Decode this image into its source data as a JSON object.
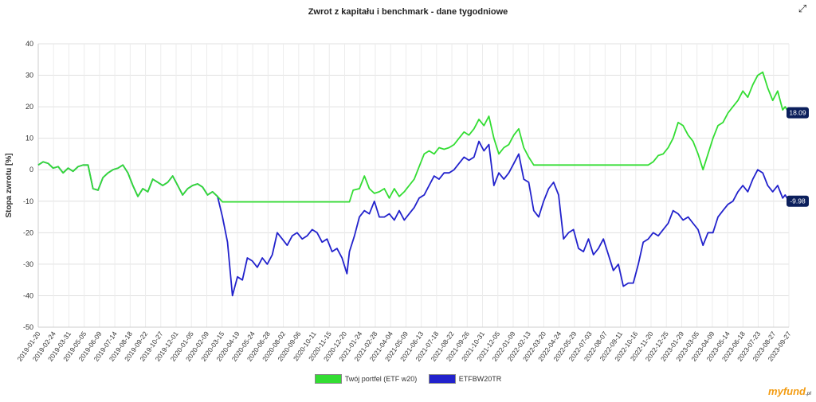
{
  "chart_data": {
    "type": "line",
    "title": "Zwrot z kapitału i benchmark - dane tygodniowe",
    "ylabel": "Stopa zwrotu [%]",
    "xlabel": "",
    "ylim": [
      -50,
      40
    ],
    "yticks": [
      40,
      30,
      20,
      10,
      0,
      -10,
      -20,
      -30,
      -40,
      -50
    ],
    "grid": true,
    "legend_position": "bottom",
    "x_ticks": [
      "2019-01-20",
      "2019-02-24",
      "2019-03-31",
      "2019-05-05",
      "2019-06-09",
      "2019-07-14",
      "2019-08-18",
      "2019-09-22",
      "2019-10-27",
      "2019-12-01",
      "2020-01-05",
      "2020-02-09",
      "2020-03-15",
      "2020-04-19",
      "2020-05-24",
      "2020-06-28",
      "2020-08-02",
      "2020-09-06",
      "2020-10-11",
      "2020-11-15",
      "2020-12-20",
      "2021-01-24",
      "2021-02-28",
      "2021-04-04",
      "2021-05-09",
      "2021-06-13",
      "2021-07-18",
      "2021-08-22",
      "2021-09-26",
      "2021-10-31",
      "2021-12-05",
      "2022-01-09",
      "2022-02-13",
      "2022-03-20",
      "2022-04-24",
      "2022-05-29",
      "2022-07-03",
      "2022-08-07",
      "2022-09-11",
      "2022-10-16",
      "2022-11-20",
      "2022-12-25",
      "2023-01-29",
      "2023-03-05",
      "2023-04-09",
      "2023-05-14",
      "2023-06-18",
      "2023-07-23",
      "2023-08-27",
      "2023-09-27"
    ],
    "series": [
      {
        "name": "Twój portfel (ETF w20)",
        "color": "#33dd33",
        "end_label": "18.09",
        "points": [
          [
            0,
            1.5
          ],
          [
            0.4,
            2.5
          ],
          [
            0.8,
            2
          ],
          [
            1.2,
            0.5
          ],
          [
            1.6,
            1
          ],
          [
            2,
            -1
          ],
          [
            2.4,
            0.5
          ],
          [
            2.8,
            -0.5
          ],
          [
            3.2,
            1
          ],
          [
            3.6,
            1.5
          ],
          [
            4,
            1.5
          ],
          [
            4.4,
            -6
          ],
          [
            4.8,
            -6.5
          ],
          [
            5.2,
            -2.5
          ],
          [
            5.6,
            -1
          ],
          [
            6,
            0
          ],
          [
            6.4,
            0.5
          ],
          [
            6.8,
            1.5
          ],
          [
            7.2,
            -1
          ],
          [
            7.6,
            -5
          ],
          [
            8,
            -8.5
          ],
          [
            8.4,
            -6
          ],
          [
            8.8,
            -7
          ],
          [
            9.2,
            -3
          ],
          [
            9.6,
            -4
          ],
          [
            10,
            -5
          ],
          [
            10.4,
            -4
          ],
          [
            10.8,
            -2
          ],
          [
            11.2,
            -5
          ],
          [
            11.6,
            -8
          ],
          [
            12,
            -6
          ],
          [
            12.4,
            -5
          ],
          [
            12.8,
            -4.5
          ],
          [
            13.2,
            -5.5
          ],
          [
            13.6,
            -8
          ],
          [
            14,
            -7
          ],
          [
            14.4,
            -8.5
          ],
          [
            14.8,
            -10.2
          ],
          [
            15.2,
            -10.2
          ],
          [
            20,
            -10.2
          ],
          [
            25,
            -10.2
          ],
          [
            25.3,
            -6.5
          ],
          [
            25.8,
            -6
          ],
          [
            26.2,
            -2
          ],
          [
            26.6,
            -6
          ],
          [
            27,
            -7.5
          ],
          [
            27.4,
            -7
          ],
          [
            27.8,
            -6
          ],
          [
            28.2,
            -9
          ],
          [
            28.6,
            -6
          ],
          [
            29,
            -8.5
          ],
          [
            29.4,
            -7
          ],
          [
            29.8,
            -5
          ],
          [
            30.2,
            -3
          ],
          [
            30.6,
            1
          ],
          [
            31,
            5
          ],
          [
            31.4,
            6
          ],
          [
            31.8,
            5
          ],
          [
            32.2,
            7
          ],
          [
            32.6,
            6.5
          ],
          [
            33,
            7
          ],
          [
            33.4,
            8
          ],
          [
            33.8,
            10
          ],
          [
            34.2,
            12
          ],
          [
            34.6,
            11
          ],
          [
            35,
            13
          ],
          [
            35.4,
            16
          ],
          [
            35.8,
            14
          ],
          [
            36.2,
            17
          ],
          [
            36.6,
            10
          ],
          [
            37,
            5
          ],
          [
            37.4,
            7
          ],
          [
            37.8,
            8
          ],
          [
            38.2,
            11
          ],
          [
            38.6,
            13
          ],
          [
            39,
            7
          ],
          [
            39.4,
            4
          ],
          [
            39.8,
            1.5
          ],
          [
            42,
            1.5
          ],
          [
            45,
            1.5
          ],
          [
            48,
            1.5
          ],
          [
            49,
            1.5
          ],
          [
            49.4,
            2.5
          ],
          [
            49.8,
            4.5
          ],
          [
            50.2,
            5
          ],
          [
            50.6,
            7
          ],
          [
            51,
            10
          ],
          [
            51.4,
            15
          ],
          [
            51.8,
            14
          ],
          [
            52.2,
            11
          ],
          [
            52.6,
            9
          ],
          [
            53,
            5
          ],
          [
            53.4,
            0
          ],
          [
            53.8,
            5
          ],
          [
            54.2,
            10
          ],
          [
            54.6,
            14
          ],
          [
            55,
            15
          ],
          [
            55.4,
            18
          ],
          [
            55.8,
            20
          ],
          [
            56.2,
            22
          ],
          [
            56.6,
            25
          ],
          [
            57,
            23
          ],
          [
            57.4,
            27
          ],
          [
            57.8,
            30
          ],
          [
            58.2,
            31
          ],
          [
            58.6,
            26
          ],
          [
            59,
            22
          ],
          [
            59.4,
            25
          ],
          [
            59.8,
            19
          ],
          [
            60,
            20
          ],
          [
            60.3,
            18.09
          ]
        ]
      },
      {
        "name": "ETFBW20TR",
        "color": "#2222cc",
        "end_label": "-9.98",
        "points": [
          [
            0,
            1.5
          ],
          [
            0.4,
            2.5
          ],
          [
            0.8,
            2
          ],
          [
            1.2,
            0.5
          ],
          [
            1.6,
            1
          ],
          [
            2,
            -1
          ],
          [
            2.4,
            0.5
          ],
          [
            2.8,
            -0.5
          ],
          [
            3.2,
            1
          ],
          [
            3.6,
            1.5
          ],
          [
            4,
            1.5
          ],
          [
            4.4,
            -6
          ],
          [
            4.8,
            -6.5
          ],
          [
            5.2,
            -2.5
          ],
          [
            5.6,
            -1
          ],
          [
            6,
            0
          ],
          [
            6.4,
            0.5
          ],
          [
            6.8,
            1.5
          ],
          [
            7.2,
            -1
          ],
          [
            7.6,
            -5
          ],
          [
            8,
            -8.5
          ],
          [
            8.4,
            -6
          ],
          [
            8.8,
            -7
          ],
          [
            9.2,
            -3
          ],
          [
            9.6,
            -4
          ],
          [
            10,
            -5
          ],
          [
            10.4,
            -4
          ],
          [
            10.8,
            -2
          ],
          [
            11.2,
            -5
          ],
          [
            11.6,
            -8
          ],
          [
            12,
            -6
          ],
          [
            12.4,
            -5
          ],
          [
            12.8,
            -4.5
          ],
          [
            13.2,
            -5.5
          ],
          [
            13.6,
            -8
          ],
          [
            14,
            -7
          ],
          [
            14.4,
            -8.5
          ],
          [
            14.8,
            -15
          ],
          [
            15.2,
            -23
          ],
          [
            15.6,
            -40
          ],
          [
            16,
            -34
          ],
          [
            16.4,
            -35
          ],
          [
            16.8,
            -28
          ],
          [
            17.2,
            -29
          ],
          [
            17.6,
            -31
          ],
          [
            18,
            -28
          ],
          [
            18.4,
            -30
          ],
          [
            18.8,
            -27
          ],
          [
            19.2,
            -20
          ],
          [
            19.6,
            -22
          ],
          [
            20,
            -24
          ],
          [
            20.4,
            -21
          ],
          [
            20.8,
            -20
          ],
          [
            21.2,
            -22
          ],
          [
            21.6,
            -21
          ],
          [
            22,
            -19
          ],
          [
            22.4,
            -20
          ],
          [
            22.8,
            -23
          ],
          [
            23.2,
            -22
          ],
          [
            23.6,
            -26
          ],
          [
            24,
            -25
          ],
          [
            24.4,
            -28
          ],
          [
            24.8,
            -33
          ],
          [
            25,
            -26
          ],
          [
            25.4,
            -21
          ],
          [
            25.8,
            -15
          ],
          [
            26.2,
            -13
          ],
          [
            26.6,
            -14
          ],
          [
            27,
            -10
          ],
          [
            27.4,
            -15
          ],
          [
            27.8,
            -15
          ],
          [
            28.2,
            -14
          ],
          [
            28.6,
            -16
          ],
          [
            29,
            -13
          ],
          [
            29.4,
            -16
          ],
          [
            29.8,
            -14
          ],
          [
            30.2,
            -12
          ],
          [
            30.6,
            -9
          ],
          [
            31,
            -8
          ],
          [
            31.4,
            -5
          ],
          [
            31.8,
            -2
          ],
          [
            32.2,
            -3
          ],
          [
            32.6,
            -1
          ],
          [
            33,
            -1
          ],
          [
            33.4,
            0
          ],
          [
            33.8,
            2
          ],
          [
            34.2,
            4
          ],
          [
            34.6,
            3
          ],
          [
            35,
            4
          ],
          [
            35.4,
            9
          ],
          [
            35.8,
            6
          ],
          [
            36.2,
            8
          ],
          [
            36.6,
            -5
          ],
          [
            37,
            -1
          ],
          [
            37.4,
            -3
          ],
          [
            37.8,
            -1
          ],
          [
            38.2,
            2
          ],
          [
            38.6,
            5
          ],
          [
            39,
            -3
          ],
          [
            39.4,
            -4
          ],
          [
            39.8,
            -13
          ],
          [
            40.2,
            -15
          ],
          [
            40.6,
            -10
          ],
          [
            41,
            -6
          ],
          [
            41.4,
            -4
          ],
          [
            41.8,
            -8
          ],
          [
            42.2,
            -22
          ],
          [
            42.6,
            -20
          ],
          [
            43,
            -19
          ],
          [
            43.4,
            -25
          ],
          [
            43.8,
            -26
          ],
          [
            44.2,
            -22
          ],
          [
            44.6,
            -27
          ],
          [
            45,
            -25
          ],
          [
            45.4,
            -22
          ],
          [
            45.8,
            -27
          ],
          [
            46.2,
            -32
          ],
          [
            46.6,
            -30
          ],
          [
            47,
            -37
          ],
          [
            47.4,
            -36
          ],
          [
            47.8,
            -36
          ],
          [
            48.2,
            -30
          ],
          [
            48.6,
            -23
          ],
          [
            49,
            -22
          ],
          [
            49.4,
            -20
          ],
          [
            49.8,
            -21
          ],
          [
            50.2,
            -19
          ],
          [
            50.6,
            -17
          ],
          [
            51,
            -13
          ],
          [
            51.4,
            -14
          ],
          [
            51.8,
            -16
          ],
          [
            52.2,
            -15
          ],
          [
            52.6,
            -17
          ],
          [
            53,
            -19
          ],
          [
            53.4,
            -24
          ],
          [
            53.8,
            -20
          ],
          [
            54.2,
            -20
          ],
          [
            54.6,
            -15
          ],
          [
            55,
            -13
          ],
          [
            55.4,
            -11
          ],
          [
            55.8,
            -10
          ],
          [
            56.2,
            -7
          ],
          [
            56.6,
            -5
          ],
          [
            57,
            -7
          ],
          [
            57.4,
            -3
          ],
          [
            57.8,
            0
          ],
          [
            58.2,
            -1
          ],
          [
            58.6,
            -5
          ],
          [
            59,
            -7
          ],
          [
            59.4,
            -5
          ],
          [
            59.8,
            -9
          ],
          [
            60,
            -8
          ],
          [
            60.3,
            -9.98
          ]
        ]
      }
    ]
  },
  "ui": {
    "expand_icon": "expand-icon",
    "logo_text": "myfund",
    "logo_suffix": ".pl"
  }
}
